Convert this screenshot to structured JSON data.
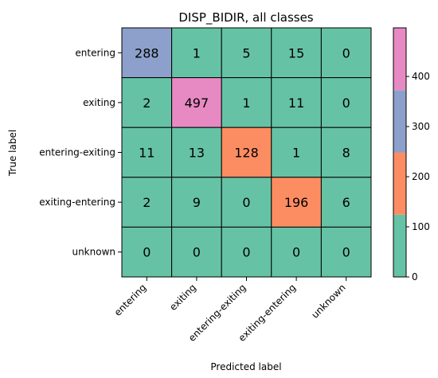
{
  "chart_data": {
    "type": "heatmap",
    "title": "DISP_BIDIR, all classes",
    "xlabel": "Predicted label",
    "ylabel": "True label",
    "x_categories": [
      "entering",
      "exiting",
      "entering-exiting",
      "exiting-entering",
      "unknown"
    ],
    "y_categories": [
      "entering",
      "exiting",
      "entering-exiting",
      "exiting-entering",
      "unknown"
    ],
    "values": [
      [
        288,
        1,
        5,
        15,
        0
      ],
      [
        2,
        497,
        1,
        11,
        0
      ],
      [
        11,
        13,
        128,
        1,
        8
      ],
      [
        2,
        9,
        0,
        196,
        6
      ],
      [
        0,
        0,
        0,
        0,
        0
      ]
    ],
    "colorbar": {
      "range": [
        0,
        497
      ],
      "ticks": [
        0,
        100,
        200,
        300,
        400
      ],
      "bands": [
        {
          "from": 0,
          "to": 124.25,
          "color": "#66c2a5"
        },
        {
          "from": 124.25,
          "to": 248.5,
          "color": "#fc8d62"
        },
        {
          "from": 248.5,
          "to": 372.75,
          "color": "#8da0cb"
        },
        {
          "from": 372.75,
          "to": 497,
          "color": "#e78ac3"
        }
      ]
    },
    "grid": true
  }
}
